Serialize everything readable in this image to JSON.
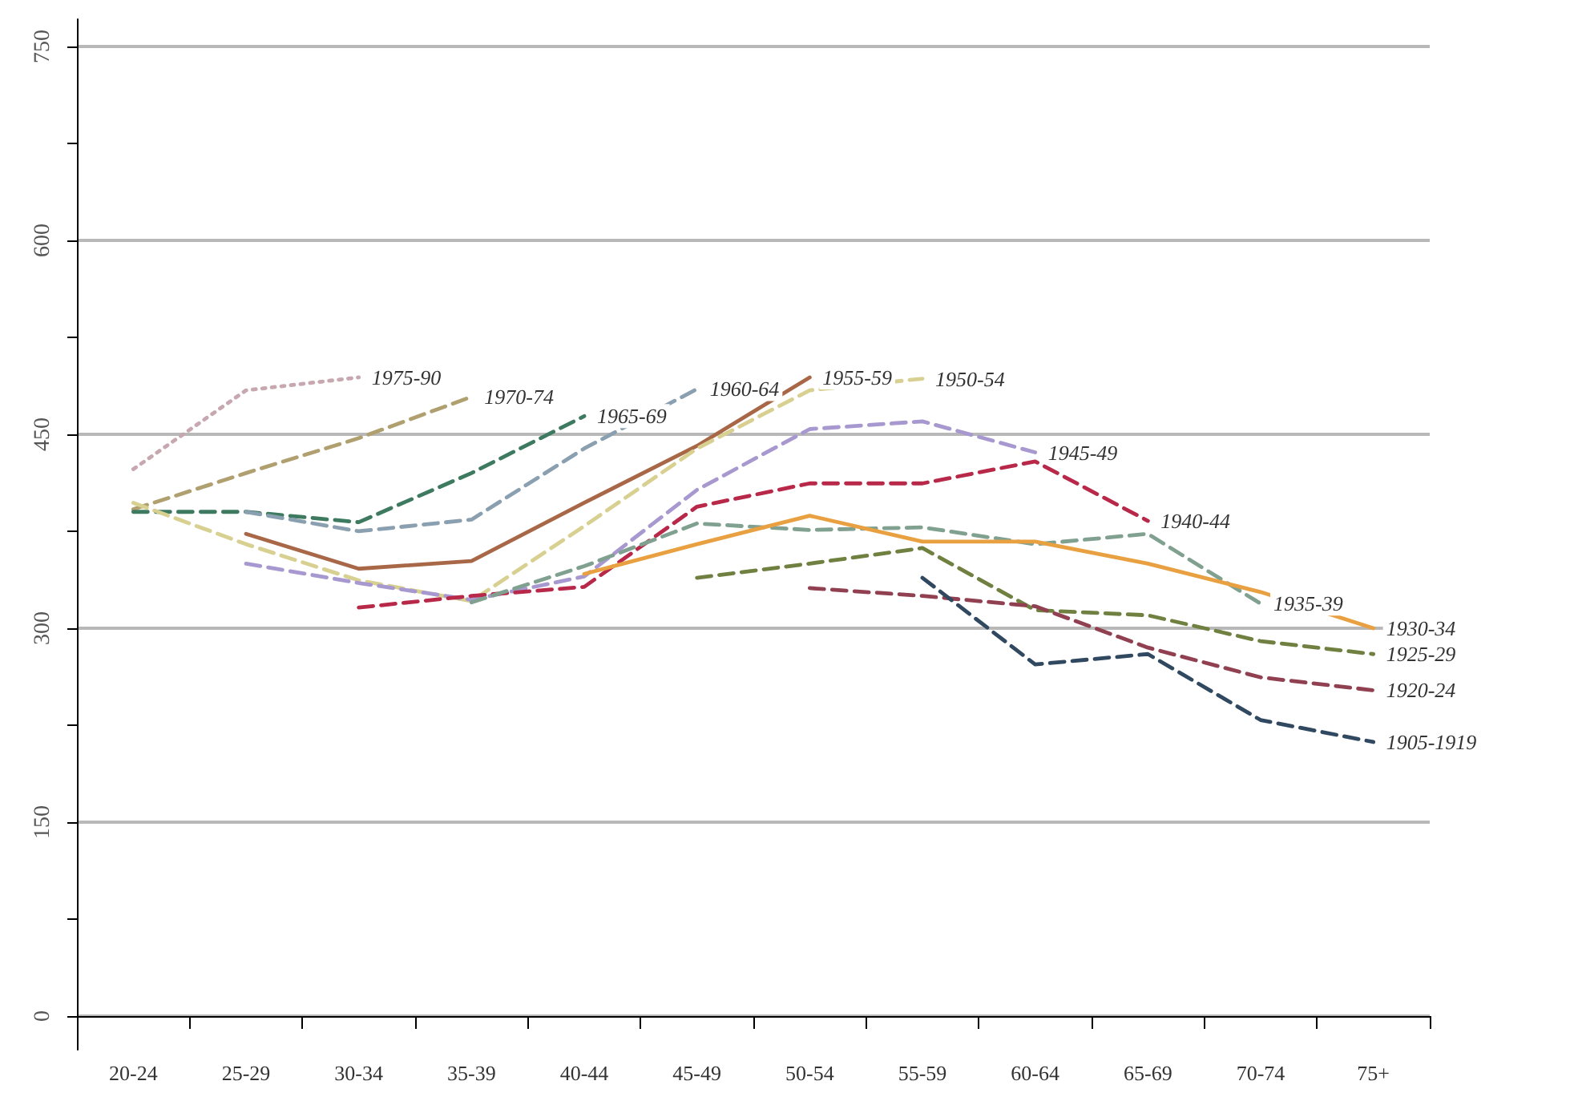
{
  "chart_data": {
    "type": "line",
    "categories": [
      "20-24",
      "25-29",
      "30-34",
      "35-39",
      "40-44",
      "45-49",
      "50-54",
      "55-59",
      "60-64",
      "65-69",
      "70-74",
      "75+"
    ],
    "ylim": [
      -26,
      771
    ],
    "yticks": [
      0,
      {
        "value": 75,
        "label": null
      },
      150,
      {
        "value": 225,
        "label": null
      },
      300,
      {
        "value": 375,
        "label": null
      },
      450,
      {
        "value": 525,
        "label": null
      },
      600,
      {
        "value": 675,
        "label": null
      },
      750
    ],
    "grid": "y",
    "legend": false,
    "marker": "none",
    "series": [
      {
        "name": "1975-90",
        "color": "#c8a8b0",
        "line_style": "dotted",
        "values": [
          423,
          484,
          494,
          null,
          null,
          null,
          null,
          null,
          null,
          null,
          null,
          null
        ]
      },
      {
        "name": "1970-74",
        "color": "#b0a070",
        "line_style": "dashed",
        "values": [
          392,
          420,
          447,
          479,
          null,
          null,
          null,
          null,
          null,
          null,
          null,
          null
        ]
      },
      {
        "name": "1965-69",
        "color": "#3d7a60",
        "line_style": "dashed",
        "values": [
          390,
          390,
          382,
          420,
          464,
          null,
          null,
          null,
          null,
          null,
          null,
          null
        ]
      },
      {
        "name": "1960-64",
        "color": "#8aa0b0",
        "line_style": "dashed",
        "values": [
          null,
          390,
          375,
          384,
          439,
          485,
          null,
          null,
          null,
          null,
          null,
          null
        ]
      },
      {
        "name": "1955-59",
        "color": "#a86848",
        "line_style": "solid",
        "values": [
          null,
          373,
          346,
          352,
          397,
          441,
          494,
          null,
          null,
          null,
          null,
          null
        ]
      },
      {
        "name": "1950-54",
        "color": "#d8d090",
        "line_style": "dashed",
        "values": [
          397,
          365,
          337,
          321,
          379,
          439,
          484,
          493,
          null,
          null,
          null,
          null
        ]
      },
      {
        "name": "1945-49",
        "color": "#a898d0",
        "line_style": "dashed",
        "values": [
          null,
          350,
          335,
          322,
          340,
          407,
          454,
          460,
          436,
          null,
          null,
          null
        ]
      },
      {
        "name": "1940-44",
        "color": "#b82848",
        "line_style": "dashed",
        "values": [
          null,
          null,
          316,
          325,
          332,
          394,
          412,
          412,
          429,
          383,
          null,
          null
        ]
      },
      {
        "name": "1935-39",
        "color": "#80a090",
        "line_style": "dashed",
        "values": [
          null,
          null,
          null,
          320,
          348,
          381,
          376,
          378,
          365,
          373,
          319,
          null
        ]
      },
      {
        "name": "1930-34",
        "color": "#e8a040",
        "line_style": "solid",
        "values": [
          null,
          null,
          null,
          null,
          342,
          365,
          387,
          367,
          367,
          350,
          328,
          300
        ]
      },
      {
        "name": "1925-29",
        "color": "#708040",
        "line_style": "dashed",
        "values": [
          null,
          null,
          null,
          null,
          null,
          339,
          350,
          362,
          314,
          310,
          290,
          280
        ]
      },
      {
        "name": "1920-24",
        "color": "#904050",
        "line_style": "dashed",
        "values": [
          null,
          null,
          null,
          null,
          null,
          null,
          331,
          325,
          317,
          285,
          262,
          252
        ]
      },
      {
        "name": "1905-1919",
        "color": "#304860",
        "line_style": "dashed",
        "values": [
          null,
          null,
          null,
          null,
          null,
          null,
          null,
          339,
          272,
          280,
          229,
          212
        ]
      }
    ]
  }
}
